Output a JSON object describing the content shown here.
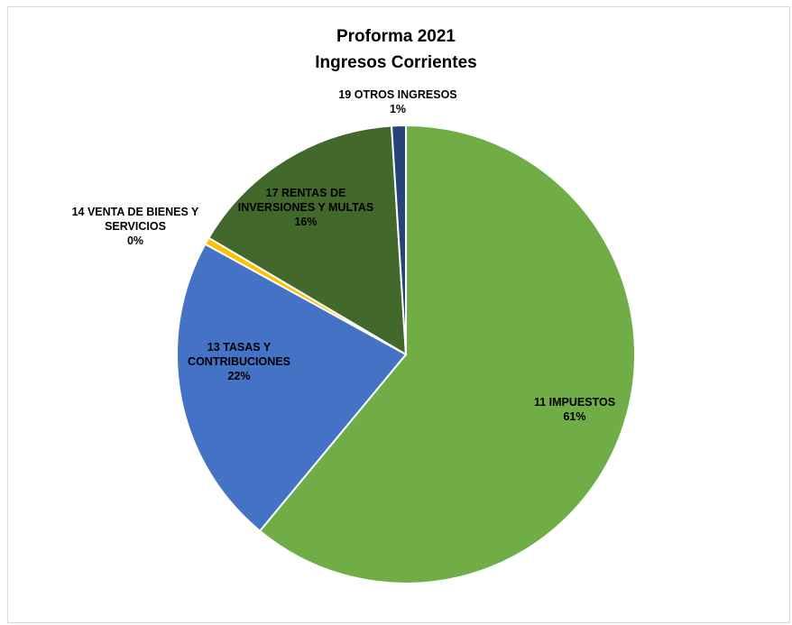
{
  "chart_data": {
    "type": "pie",
    "title": "Proforma 2021",
    "subtitle": "Ingresos Corrientes",
    "slices": [
      {
        "label_lines": [
          "11 IMPUESTOS"
        ],
        "percent_label": "61%",
        "value": 61.0,
        "color": "#70ad47"
      },
      {
        "label_lines": [
          "13 TASAS Y",
          "CONTRIBUCIONES"
        ],
        "percent_label": "22%",
        "value": 22.0,
        "color": "#4472c4"
      },
      {
        "label_lines": [
          "14 VENTA DE BIENES Y",
          "SERVICIOS"
        ],
        "percent_label": "0%",
        "value": 0.5,
        "color": "#ffc000"
      },
      {
        "label_lines": [
          "17 RENTAS DE",
          "INVERSIONES Y MULTAS"
        ],
        "percent_label": "16%",
        "value": 15.5,
        "color": "#43682b"
      },
      {
        "label_lines": [
          "19 OTROS INGRESOS"
        ],
        "percent_label": "1%",
        "value": 1.0,
        "color": "#264478"
      }
    ]
  }
}
